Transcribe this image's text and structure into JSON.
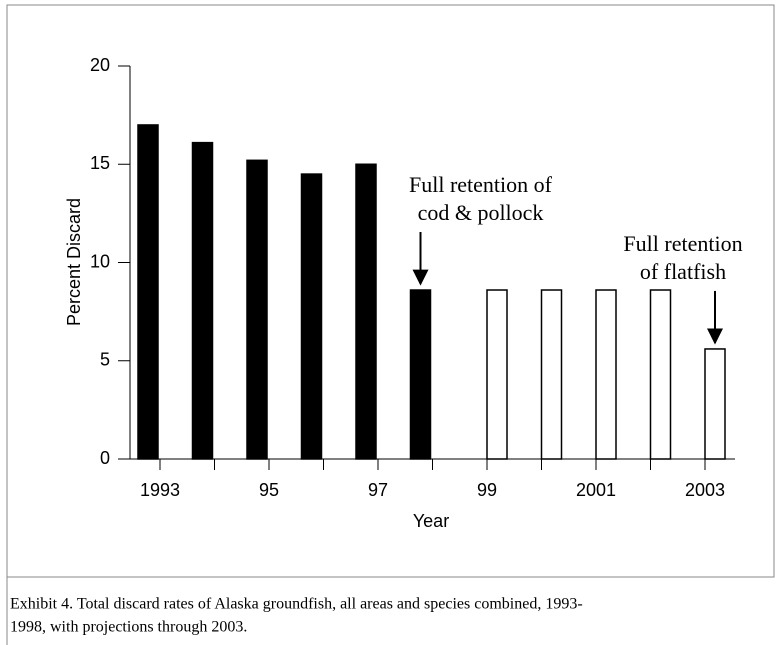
{
  "chart_data": {
    "type": "bar",
    "categories": [
      "1993",
      null,
      "95",
      null,
      "97",
      null,
      "99",
      null,
      "2001",
      null,
      "2003"
    ],
    "values": [
      17,
      16.1,
      15.2,
      14.5,
      15,
      8.6,
      8.6,
      8.6,
      8.6,
      8.6,
      5.6
    ],
    "colors": [
      "#000000",
      "#000000",
      "#000000",
      "#000000",
      "#000000",
      "#000000",
      "#ffffff",
      "#ffffff",
      "#ffffff",
      "#ffffff",
      "#ffffff"
    ],
    "ylim": [
      0,
      20
    ],
    "yticks": [
      0,
      5,
      10,
      15,
      20
    ],
    "ylabel": "Percent Discard",
    "xlabel": "Year",
    "annotations": [
      {
        "lines": [
          "Full retention of",
          "cod & pollock"
        ],
        "target": 5
      },
      {
        "lines": [
          "Full retention",
          "of flatfish"
        ],
        "target": 10
      }
    ],
    "caption": [
      "Exhibit 4.   Total discard rates of Alaska groundfish, all areas and species combined, 1993-",
      "1998, with projections through 2003."
    ]
  }
}
